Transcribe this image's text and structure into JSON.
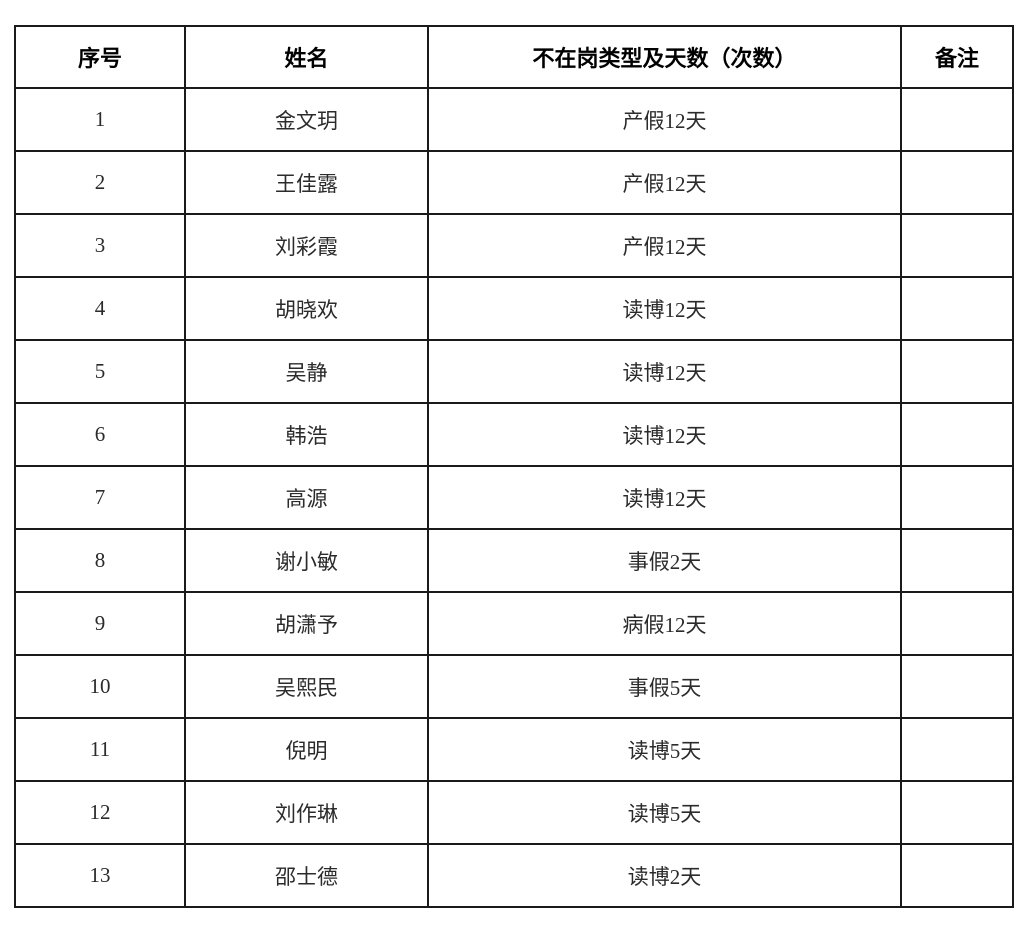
{
  "table": {
    "headers": {
      "index": "序号",
      "name": "姓名",
      "type": "不在岗类型及天数（次数）",
      "remark": "备注"
    },
    "rows": [
      {
        "index": "1",
        "name": "金文玥",
        "type": "产假12天",
        "remark": ""
      },
      {
        "index": "2",
        "name": "王佳露",
        "type": "产假12天",
        "remark": ""
      },
      {
        "index": "3",
        "name": "刘彩霞",
        "type": "产假12天",
        "remark": ""
      },
      {
        "index": "4",
        "name": "胡晓欢",
        "type": "读博12天",
        "remark": ""
      },
      {
        "index": "5",
        "name": "吴静",
        "type": "读博12天",
        "remark": ""
      },
      {
        "index": "6",
        "name": "韩浩",
        "type": "读博12天",
        "remark": ""
      },
      {
        "index": "7",
        "name": "高源",
        "type": "读博12天",
        "remark": ""
      },
      {
        "index": "8",
        "name": "谢小敏",
        "type": "事假2天",
        "remark": ""
      },
      {
        "index": "9",
        "name": "胡潇予",
        "type": "病假12天",
        "remark": ""
      },
      {
        "index": "10",
        "name": "吴熙民",
        "type": "事假5天",
        "remark": ""
      },
      {
        "index": "11",
        "name": "倪明",
        "type": "读博5天",
        "remark": ""
      },
      {
        "index": "12",
        "name": "刘作琳",
        "type": "读博5天",
        "remark": ""
      },
      {
        "index": "13",
        "name": "邵士德",
        "type": "读博2天",
        "remark": ""
      }
    ]
  }
}
